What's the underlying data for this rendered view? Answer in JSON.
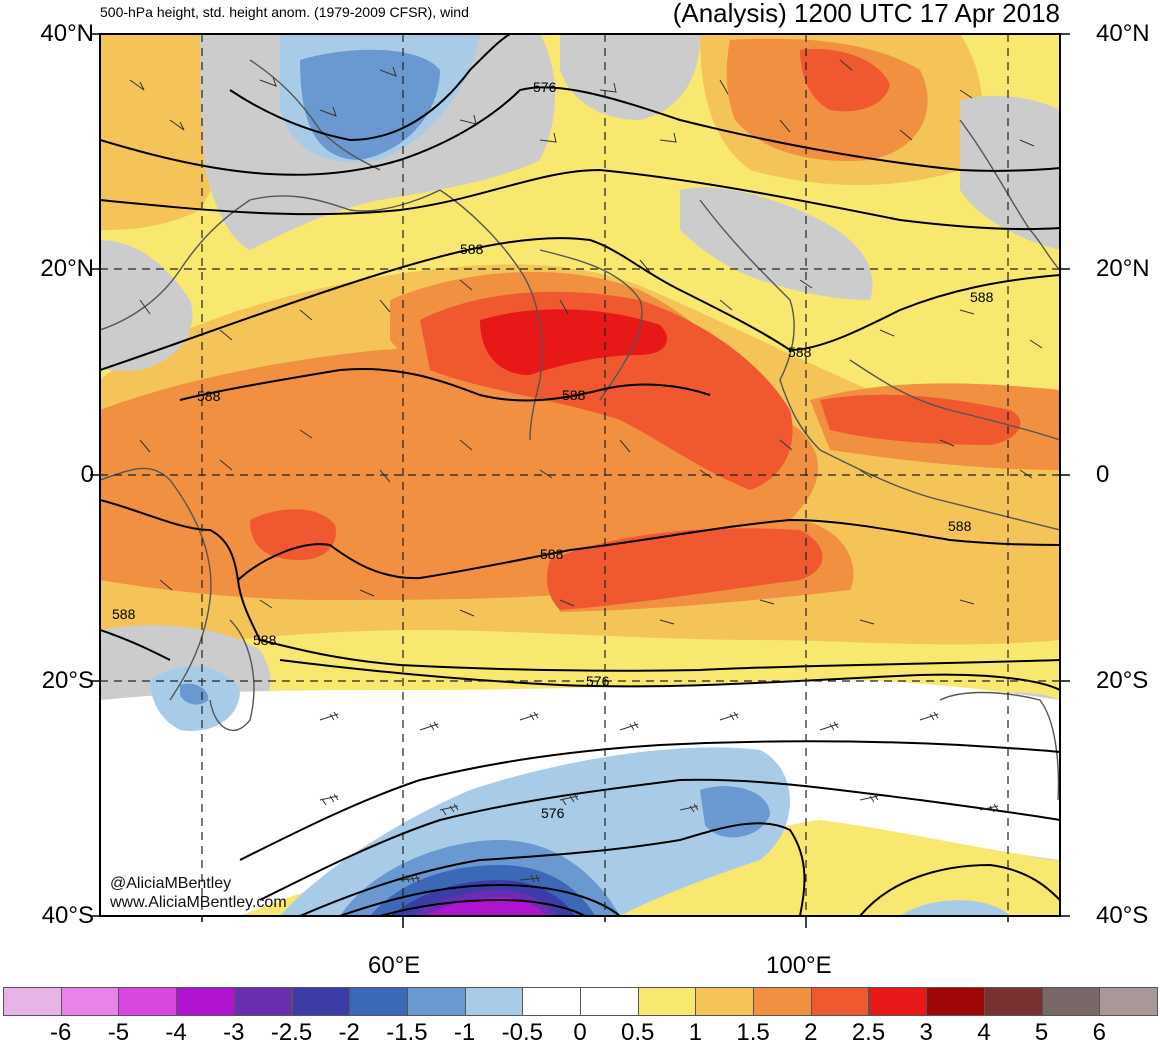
{
  "title_left": "500-hPa height, std. height anom. (1979-2009 CFSR), wind",
  "title_right": "(Analysis) 1200 UTC 17 Apr 2018",
  "lat_labels": [
    "40°N",
    "20°N",
    "0",
    "20°S",
    "40°S"
  ],
  "lon_labels": [
    "60°E",
    "100°E"
  ],
  "contour_labels": [
    "576",
    "588",
    "588",
    "588",
    "588",
    "588",
    "588",
    "588",
    "588",
    "588",
    "576",
    "576"
  ],
  "credits": [
    "@AliciaMBentley",
    "www.AliciaMBentley.com"
  ],
  "colorbar": {
    "labels": [
      "-6",
      "-5",
      "-4",
      "-3",
      "-2.5",
      "-2",
      "-1.5",
      "-1",
      "-0.5",
      "0",
      "0.5",
      "1",
      "1.5",
      "2",
      "2.5",
      "3",
      "4",
      "5",
      "6"
    ],
    "colors": [
      "#e8b4e8",
      "#e884e8",
      "#d848e0",
      "#b014d0",
      "#6a2cb0",
      "#3c3ca8",
      "#3c68b8",
      "#6a98d0",
      "#a8cce8",
      "#ffffff",
      "#ffffff",
      "#f8e870",
      "#f4c458",
      "#f09040",
      "#f05830",
      "#e81818",
      "#a00808",
      "#783030",
      "#786868",
      "#a89898"
    ]
  },
  "colors": {
    "land_gray": "#cccccc",
    "yellow": "#f8e870",
    "lightorange": "#f4c458",
    "orange": "#f09040",
    "redorange": "#f05830",
    "red": "#e81818",
    "lightblue": "#a8cce8",
    "midblue": "#6a98d0",
    "blue": "#3c68b8",
    "darkblue": "#3c3ca8",
    "purple": "#6a2cb0",
    "magenta": "#b014d0"
  }
}
